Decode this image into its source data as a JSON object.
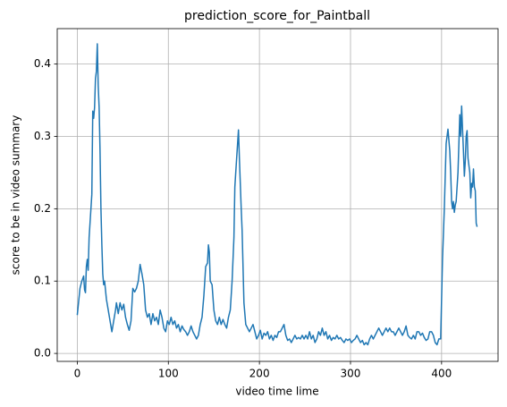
{
  "chart_data": {
    "type": "line",
    "title": "prediction_score_for_Paintball",
    "xlabel": "video time lime",
    "ylabel": "score to be in video summary",
    "x": [
      0,
      3,
      5,
      7,
      8,
      9,
      10,
      11,
      12,
      13,
      15,
      16,
      17,
      18,
      19,
      20,
      21,
      22,
      23,
      24,
      25,
      26,
      27,
      28,
      29,
      30,
      32,
      34,
      36,
      38,
      40,
      42,
      43,
      45,
      47,
      49,
      51,
      53,
      55,
      57,
      59,
      61,
      63,
      65,
      67,
      69,
      71,
      73,
      75,
      77,
      79,
      81,
      83,
      85,
      87,
      89,
      91,
      93,
      95,
      97,
      99,
      101,
      103,
      105,
      107,
      109,
      111,
      113,
      115,
      117,
      119,
      121,
      123,
      125,
      127,
      129,
      131,
      133,
      135,
      137,
      139,
      141,
      143,
      144,
      145,
      146,
      148,
      150,
      152,
      154,
      156,
      158,
      160,
      162,
      164,
      166,
      168,
      170,
      172,
      173,
      175,
      177,
      178,
      180,
      181,
      183,
      185,
      187,
      189,
      191,
      193,
      195,
      197,
      199,
      201,
      203,
      205,
      207,
      209,
      211,
      213,
      215,
      217,
      219,
      221,
      223,
      225,
      227,
      229,
      231,
      233,
      235,
      237,
      239,
      241,
      243,
      245,
      247,
      249,
      251,
      253,
      255,
      257,
      259,
      261,
      263,
      265,
      267,
      269,
      271,
      273,
      275,
      277,
      279,
      281,
      283,
      285,
      287,
      289,
      291,
      293,
      295,
      297,
      299,
      301,
      303,
      305,
      307,
      309,
      311,
      313,
      315,
      317,
      319,
      321,
      323,
      325,
      327,
      329,
      331,
      333,
      335,
      337,
      339,
      341,
      343,
      345,
      347,
      349,
      351,
      353,
      355,
      357,
      359,
      361,
      363,
      365,
      367,
      369,
      371,
      373,
      375,
      377,
      379,
      381,
      383,
      385,
      387,
      389,
      391,
      393,
      395,
      397,
      399,
      401,
      403,
      405,
      407,
      409,
      410,
      411,
      412,
      413,
      414,
      415,
      416,
      418,
      420,
      421,
      422,
      423,
      424,
      425,
      426,
      427,
      428,
      429,
      430,
      431,
      432,
      433,
      434,
      435,
      436,
      437,
      438,
      439
    ],
    "series": [
      {
        "color": "#1f77b4",
        "values": [
          0.053,
          0.09,
          0.1,
          0.107,
          0.088,
          0.084,
          0.12,
          0.13,
          0.115,
          0.16,
          0.2,
          0.22,
          0.335,
          0.325,
          0.34,
          0.38,
          0.39,
          0.428,
          0.37,
          0.34,
          0.28,
          0.2,
          0.15,
          0.11,
          0.095,
          0.1,
          0.075,
          0.06,
          0.045,
          0.03,
          0.045,
          0.06,
          0.07,
          0.055,
          0.07,
          0.06,
          0.068,
          0.05,
          0.04,
          0.032,
          0.045,
          0.09,
          0.085,
          0.09,
          0.1,
          0.123,
          0.11,
          0.095,
          0.06,
          0.05,
          0.055,
          0.04,
          0.055,
          0.045,
          0.05,
          0.04,
          0.06,
          0.05,
          0.035,
          0.03,
          0.045,
          0.04,
          0.05,
          0.04,
          0.045,
          0.035,
          0.04,
          0.03,
          0.038,
          0.033,
          0.03,
          0.025,
          0.03,
          0.038,
          0.03,
          0.025,
          0.02,
          0.025,
          0.04,
          0.05,
          0.08,
          0.12,
          0.125,
          0.15,
          0.14,
          0.1,
          0.095,
          0.06,
          0.045,
          0.04,
          0.05,
          0.04,
          0.047,
          0.04,
          0.035,
          0.05,
          0.06,
          0.1,
          0.16,
          0.23,
          0.27,
          0.309,
          0.27,
          0.2,
          0.17,
          0.07,
          0.04,
          0.035,
          0.03,
          0.035,
          0.04,
          0.03,
          0.02,
          0.025,
          0.032,
          0.02,
          0.028,
          0.025,
          0.03,
          0.02,
          0.025,
          0.018,
          0.025,
          0.022,
          0.03,
          0.03,
          0.035,
          0.04,
          0.025,
          0.018,
          0.02,
          0.015,
          0.02,
          0.025,
          0.02,
          0.022,
          0.02,
          0.025,
          0.02,
          0.025,
          0.02,
          0.03,
          0.02,
          0.025,
          0.015,
          0.02,
          0.03,
          0.025,
          0.035,
          0.025,
          0.03,
          0.02,
          0.025,
          0.018,
          0.022,
          0.02,
          0.025,
          0.02,
          0.022,
          0.018,
          0.015,
          0.02,
          0.018,
          0.02,
          0.015,
          0.018,
          0.02,
          0.025,
          0.02,
          0.015,
          0.018,
          0.012,
          0.015,
          0.012,
          0.02,
          0.025,
          0.02,
          0.025,
          0.03,
          0.035,
          0.03,
          0.025,
          0.03,
          0.035,
          0.03,
          0.035,
          0.03,
          0.03,
          0.025,
          0.03,
          0.035,
          0.03,
          0.025,
          0.03,
          0.038,
          0.025,
          0.022,
          0.02,
          0.025,
          0.02,
          0.03,
          0.03,
          0.025,
          0.028,
          0.022,
          0.018,
          0.02,
          0.03,
          0.03,
          0.025,
          0.015,
          0.012,
          0.02,
          0.02,
          0.13,
          0.2,
          0.29,
          0.31,
          0.28,
          0.25,
          0.21,
          0.2,
          0.21,
          0.195,
          0.205,
          0.21,
          0.25,
          0.33,
          0.3,
          0.342,
          0.31,
          0.28,
          0.245,
          0.265,
          0.3,
          0.308,
          0.27,
          0.26,
          0.25,
          0.215,
          0.235,
          0.23,
          0.255,
          0.23,
          0.225,
          0.18,
          0.175
        ]
      }
    ],
    "xlim": [
      -22,
      462
    ],
    "ylim": [
      -0.011,
      0.449
    ],
    "xticks": [
      0,
      100,
      200,
      300,
      400
    ],
    "yticks": [
      {
        "value": 0,
        "label": "0.0"
      },
      0.1,
      0.2,
      0.3,
      0.4
    ],
    "grid": true
  }
}
